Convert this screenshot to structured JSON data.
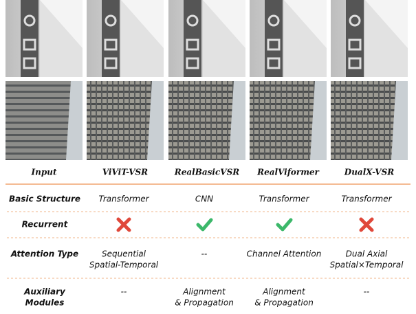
{
  "columns": [
    "Input",
    "ViViT-VSR",
    "RealBasicVSR",
    "RealViformer",
    "DualX-VSR"
  ],
  "rows": {
    "basic_structure": {
      "label": "Basic Structure",
      "cells": [
        "Transformer",
        "CNN",
        "Transformer",
        "Transformer"
      ]
    },
    "recurrent": {
      "label": "Recurrent"
    },
    "attention_type": {
      "label": "Attention Type",
      "cells": [
        [
          "Sequential",
          "Spatial-Temporal"
        ],
        [
          "--"
        ],
        [
          "Channel Attention"
        ],
        [
          "Dual Axial",
          "Spatial×Temporal"
        ]
      ]
    },
    "auxiliary_modules": {
      "label": [
        "Auxiliary",
        "Modules"
      ],
      "cells": [
        [
          "--"
        ],
        [
          "Alignment",
          "& Propagation"
        ],
        [
          "Alignment",
          "& Propagation"
        ],
        [
          "--"
        ]
      ]
    }
  }
}
